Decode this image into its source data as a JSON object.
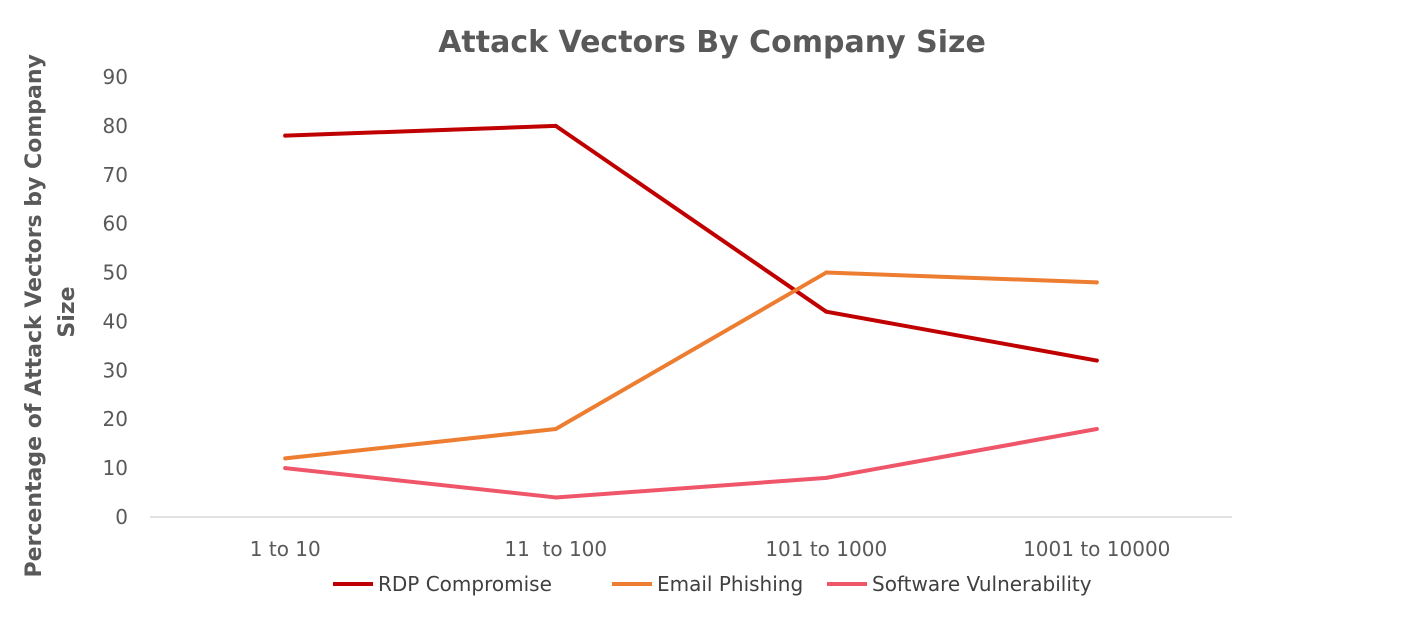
{
  "chart_data": {
    "type": "line",
    "title": "Attack Vectors By Company Size",
    "xlabel": "",
    "ylabel_lines": [
      "Percentage of Attack Vectors by Company",
      "Size"
    ],
    "categories": [
      "1 to 10",
      "11  to 100",
      "101 to 1000",
      "1001 to 10000"
    ],
    "ylim": [
      0,
      90
    ],
    "yticks": [
      0,
      10,
      20,
      30,
      40,
      50,
      60,
      70,
      80,
      90
    ],
    "grid": false,
    "legend_position": "bottom",
    "series": [
      {
        "name": "RDP Compromise",
        "color": "#c00000",
        "values": [
          78,
          80,
          42,
          32
        ]
      },
      {
        "name": "Email Phishing",
        "color": "#ed7d31",
        "values": [
          12,
          18,
          50,
          48
        ]
      },
      {
        "name": "Software Vulnerability",
        "color": "#f0566a",
        "values": [
          10,
          4,
          8,
          18
        ]
      }
    ]
  }
}
